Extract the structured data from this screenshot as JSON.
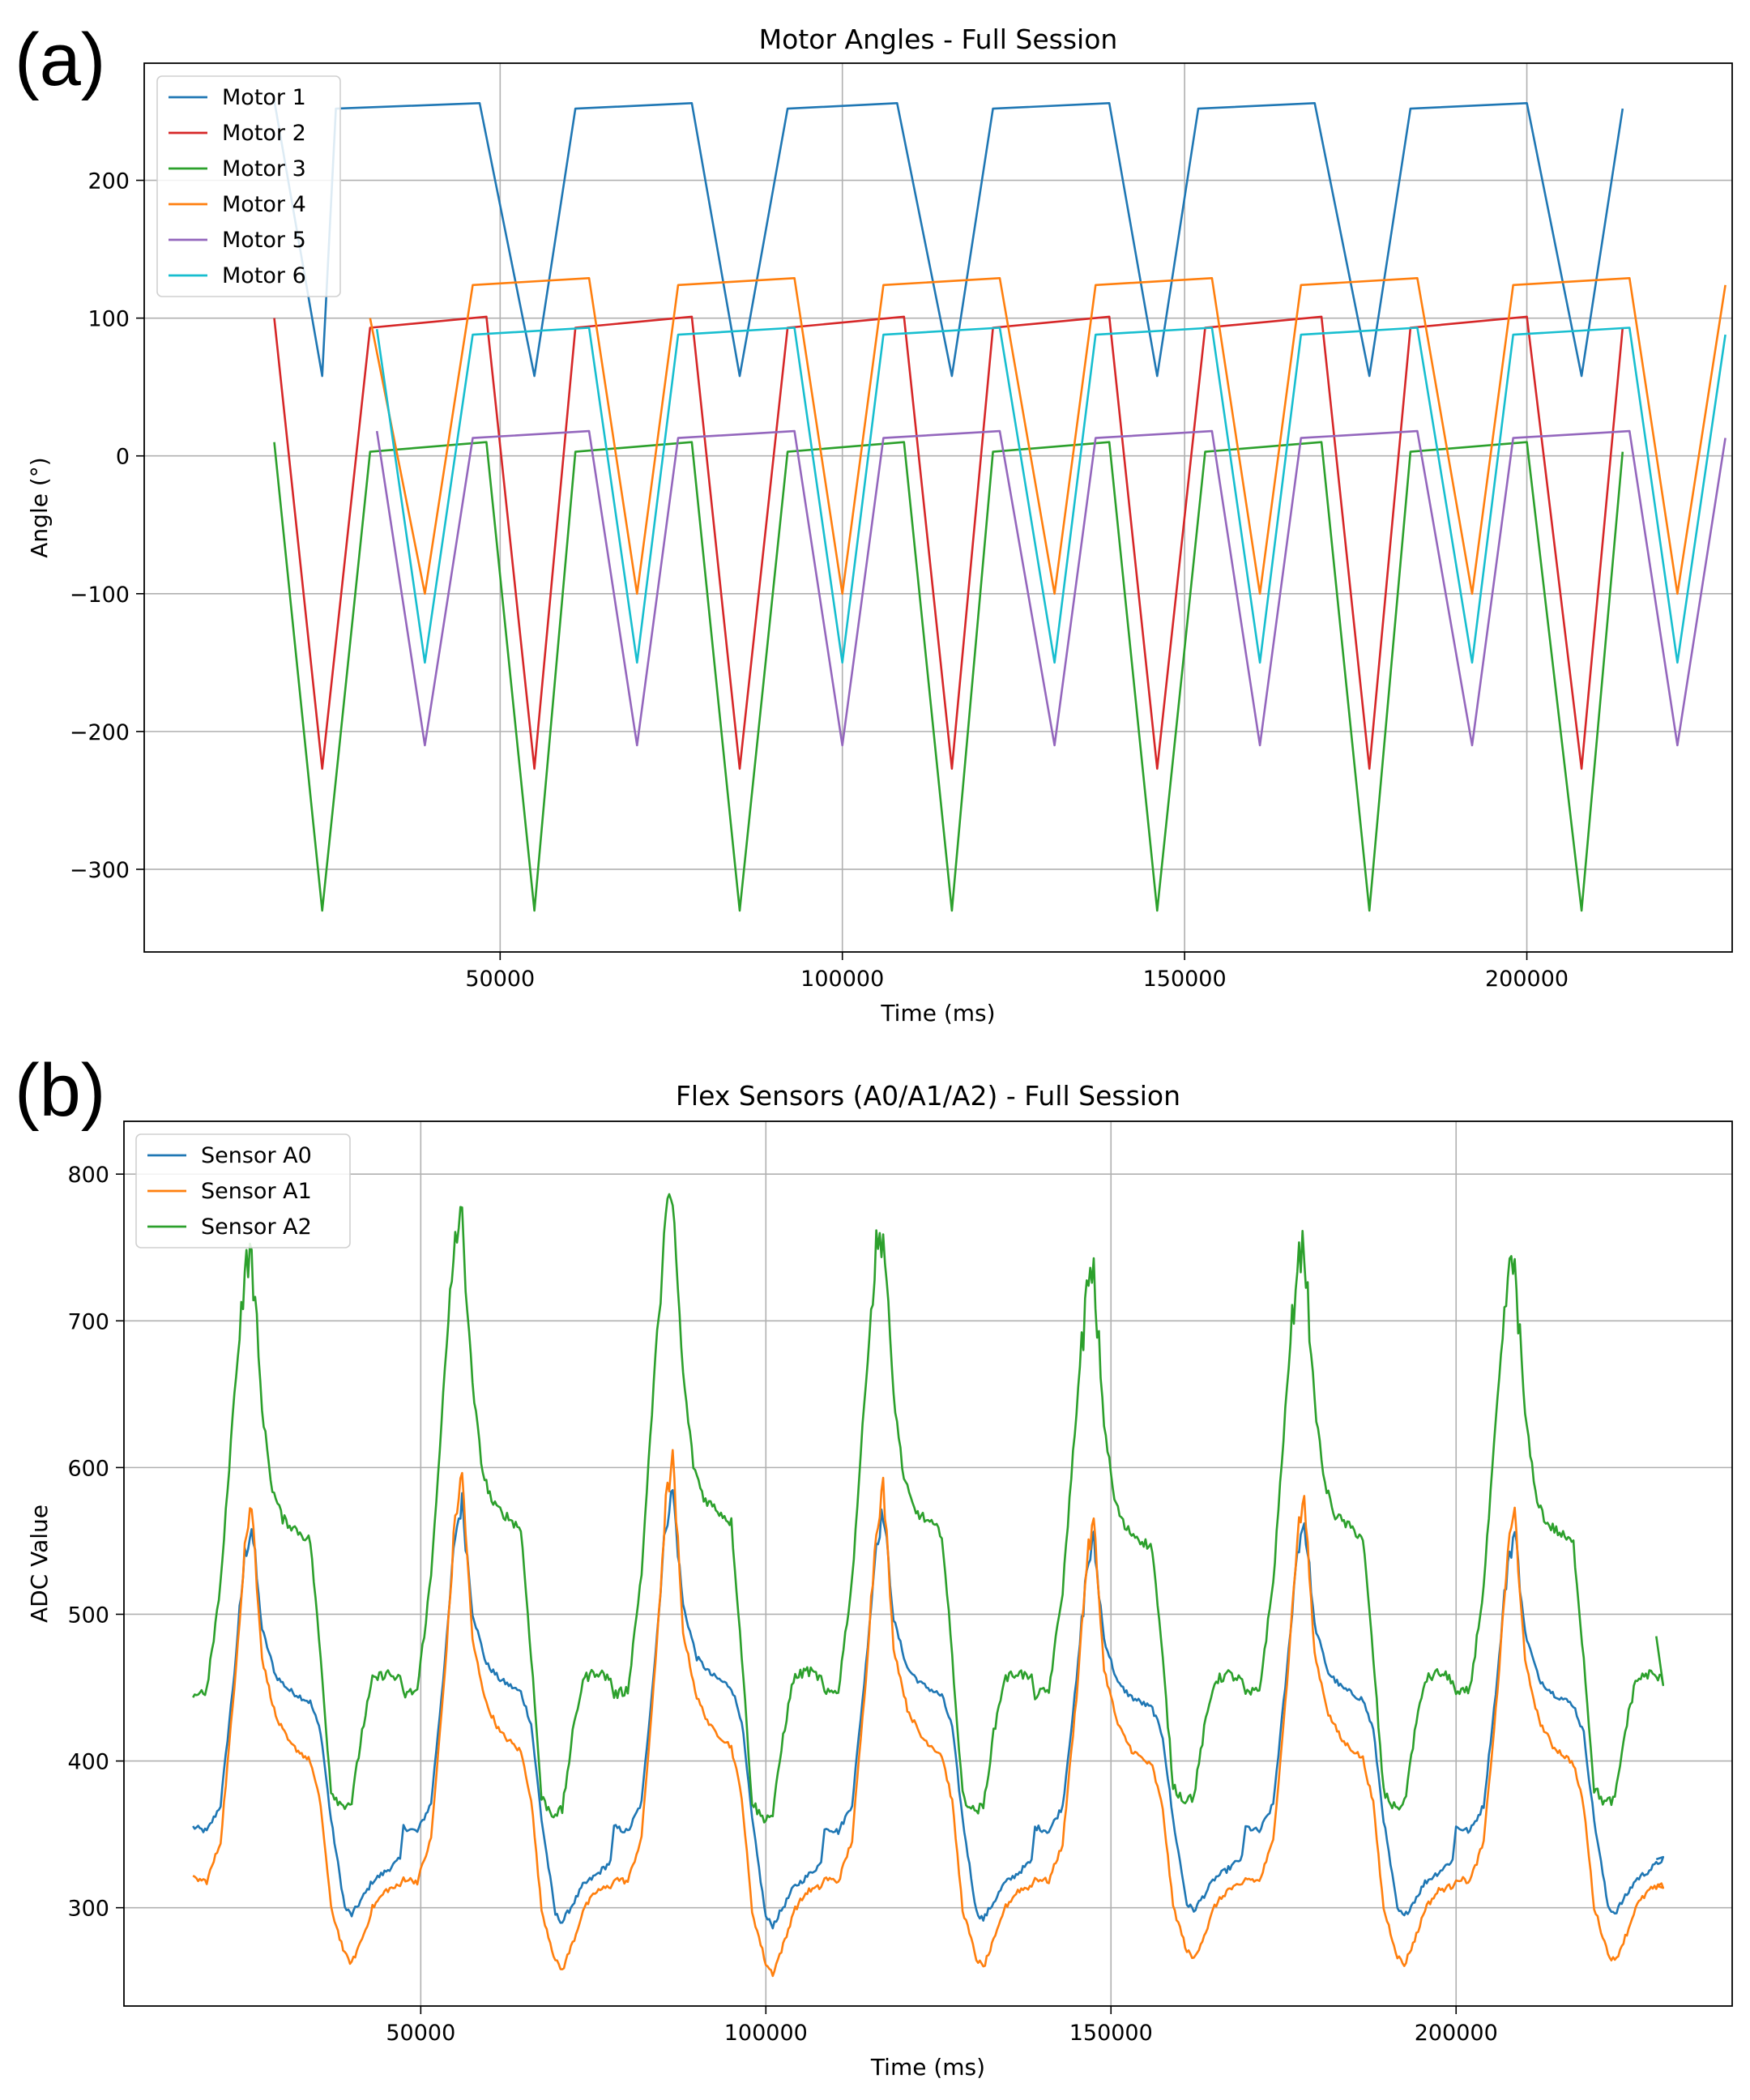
{
  "panel_labels": {
    "a": "(a)",
    "b": "(b)"
  },
  "chart_data": [
    {
      "type": "line",
      "title": "Motor Angles - Full Session",
      "xlabel": "Time (ms)",
      "ylabel": "Angle (°)",
      "xlim": [
        -2000,
        230000
      ],
      "ylim": [
        -360,
        285
      ],
      "xticks": [
        50000,
        100000,
        150000,
        200000
      ],
      "xtick_labels": [
        "50000",
        "100000",
        "150000",
        "200000"
      ],
      "yticks": [
        200,
        100,
        0,
        -100,
        -200,
        -300
      ],
      "ytick_labels": [
        "200",
        "100",
        "0",
        "−100",
        "−200",
        "−300"
      ],
      "grid": true,
      "legend_position": "upper-left",
      "series": [
        {
          "name": "Motor 1",
          "color": "#1f77b4",
          "points": [
            [
              17000,
              258
            ],
            [
              24000,
              58
            ],
            [
              26000,
              252
            ],
            [
              47000,
              256
            ],
            [
              55000,
              58
            ],
            [
              61000,
              252
            ],
            [
              78000,
              256
            ],
            [
              85000,
              58
            ],
            [
              92000,
              252
            ],
            [
              108000,
              256
            ],
            [
              116000,
              58
            ],
            [
              122000,
              252
            ],
            [
              139000,
              256
            ],
            [
              146000,
              58
            ],
            [
              152000,
              252
            ],
            [
              169000,
              256
            ],
            [
              177000,
              58
            ],
            [
              183000,
              252
            ],
            [
              200000,
              256
            ],
            [
              208000,
              58
            ],
            [
              214000,
              252
            ]
          ]
        },
        {
          "name": "Motor 2",
          "color": "#d62728",
          "points": [
            [
              17000,
              100
            ],
            [
              24000,
              -227
            ],
            [
              31000,
              93
            ],
            [
              48000,
              101
            ],
            [
              55000,
              -227
            ],
            [
              61000,
              93
            ],
            [
              78000,
              101
            ],
            [
              85000,
              -227
            ],
            [
              92000,
              93
            ],
            [
              109000,
              101
            ],
            [
              116000,
              -227
            ],
            [
              122000,
              93
            ],
            [
              139000,
              101
            ],
            [
              146000,
              -227
            ],
            [
              153000,
              93
            ],
            [
              170000,
              101
            ],
            [
              177000,
              -227
            ],
            [
              183000,
              93
            ],
            [
              200000,
              101
            ],
            [
              208000,
              -227
            ],
            [
              214000,
              93
            ]
          ]
        },
        {
          "name": "Motor 3",
          "color": "#2ca02c",
          "points": [
            [
              17000,
              10
            ],
            [
              24000,
              -330
            ],
            [
              31000,
              3
            ],
            [
              48000,
              10
            ],
            [
              55000,
              -330
            ],
            [
              61000,
              3
            ],
            [
              78000,
              10
            ],
            [
              85000,
              -330
            ],
            [
              92000,
              3
            ],
            [
              109000,
              10
            ],
            [
              116000,
              -330
            ],
            [
              122000,
              3
            ],
            [
              139000,
              10
            ],
            [
              146000,
              -330
            ],
            [
              153000,
              3
            ],
            [
              170000,
              10
            ],
            [
              177000,
              -330
            ],
            [
              183000,
              3
            ],
            [
              200000,
              10
            ],
            [
              208000,
              -330
            ],
            [
              214000,
              3
            ]
          ]
        },
        {
          "name": "Motor 4",
          "color": "#ff7f0e",
          "points": [
            [
              31000,
              100
            ],
            [
              39000,
              -100
            ],
            [
              46000,
              124
            ],
            [
              63000,
              129
            ],
            [
              70000,
              -100
            ],
            [
              76000,
              124
            ],
            [
              93000,
              129
            ],
            [
              100000,
              -100
            ],
            [
              106000,
              124
            ],
            [
              123000,
              129
            ],
            [
              131000,
              -100
            ],
            [
              137000,
              124
            ],
            [
              154000,
              129
            ],
            [
              161000,
              -100
            ],
            [
              167000,
              124
            ],
            [
              184000,
              129
            ],
            [
              192000,
              -100
            ],
            [
              198000,
              124
            ],
            [
              215000,
              129
            ],
            [
              222000,
              -100
            ],
            [
              229000,
              124
            ]
          ]
        },
        {
          "name": "Motor 5",
          "color": "#9467bd",
          "points": [
            [
              32000,
              18
            ],
            [
              39000,
              -210
            ],
            [
              46000,
              13
            ],
            [
              63000,
              18
            ],
            [
              70000,
              -210
            ],
            [
              76000,
              13
            ],
            [
              93000,
              18
            ],
            [
              100000,
              -210
            ],
            [
              106000,
              13
            ],
            [
              123000,
              18
            ],
            [
              131000,
              -210
            ],
            [
              137000,
              13
            ],
            [
              154000,
              18
            ],
            [
              161000,
              -210
            ],
            [
              167000,
              13
            ],
            [
              184000,
              18
            ],
            [
              192000,
              -210
            ],
            [
              198000,
              13
            ],
            [
              215000,
              18
            ],
            [
              222000,
              -210
            ],
            [
              229000,
              13
            ]
          ]
        },
        {
          "name": "Motor 6",
          "color": "#17becf",
          "points": [
            [
              32000,
              92
            ],
            [
              39000,
              -150
            ],
            [
              46000,
              88
            ],
            [
              63000,
              93
            ],
            [
              70000,
              -150
            ],
            [
              76000,
              88
            ],
            [
              93000,
              93
            ],
            [
              100000,
              -150
            ],
            [
              106000,
              88
            ],
            [
              123000,
              93
            ],
            [
              131000,
              -150
            ],
            [
              137000,
              88
            ],
            [
              154000,
              93
            ],
            [
              161000,
              -150
            ],
            [
              167000,
              88
            ],
            [
              184000,
              93
            ],
            [
              192000,
              -150
            ],
            [
              198000,
              88
            ],
            [
              215000,
              93
            ],
            [
              222000,
              -150
            ],
            [
              229000,
              88
            ]
          ]
        }
      ]
    },
    {
      "type": "line",
      "title": "Flex Sensors (A0/A1/A2) - Full Session",
      "xlabel": "Time (ms)",
      "ylabel": "ADC Value",
      "xlim": [
        7000,
        240000
      ],
      "ylim": [
        233,
        836
      ],
      "xticks": [
        50000,
        100000,
        150000,
        200000
      ],
      "xtick_labels": [
        "50000",
        "100000",
        "150000",
        "200000"
      ],
      "yticks": [
        800,
        700,
        600,
        500,
        400,
        300
      ],
      "ytick_labels": [
        "800",
        "700",
        "600",
        "500",
        "400",
        "300"
      ],
      "grid": true,
      "legend_position": "upper-left",
      "series": [
        {
          "name": "Sensor A0",
          "color": "#1f77b4",
          "cycle": [
            [
              0,
              355
            ],
            [
              2000,
              352
            ],
            [
              4000,
              370
            ],
            [
              6000,
              460
            ],
            [
              7500,
              540
            ],
            [
              8500,
              560
            ],
            [
              10000,
              490
            ],
            [
              12000,
              458
            ],
            [
              14000,
              448
            ],
            [
              17000,
              440
            ],
            [
              18500,
              420
            ],
            [
              20000,
              360
            ],
            [
              22000,
              300
            ],
            [
              23000,
              295
            ],
            [
              25000,
              310
            ],
            [
              26000,
              318
            ],
            [
              28000,
              325
            ],
            [
              30000,
              333
            ]
          ]
        },
        {
          "name": "Sensor A1",
          "color": "#ff7f0e",
          "cycle": [
            [
              0,
              320
            ],
            [
              2000,
              318
            ],
            [
              4000,
              345
            ],
            [
              6000,
              450
            ],
            [
              7500,
              548
            ],
            [
              8500,
              575
            ],
            [
              10000,
              470
            ],
            [
              12000,
              430
            ],
            [
              14000,
              412
            ],
            [
              17000,
              400
            ],
            [
              18500,
              370
            ],
            [
              20000,
              300
            ],
            [
              22000,
              268
            ],
            [
              23000,
              262
            ],
            [
              25000,
              285
            ],
            [
              26000,
              300
            ],
            [
              28000,
              312
            ],
            [
              30000,
              315
            ]
          ]
        },
        {
          "name": "Sensor A2",
          "color": "#2ca02c",
          "cycle": [
            [
              0,
              445
            ],
            [
              2000,
              448
            ],
            [
              4000,
              520
            ],
            [
              6000,
              650
            ],
            [
              7500,
              735
            ],
            [
              8500,
              745
            ],
            [
              10000,
              640
            ],
            [
              11500,
              585
            ],
            [
              13000,
              565
            ],
            [
              17000,
              550
            ],
            [
              18500,
              470
            ],
            [
              20000,
              380
            ],
            [
              21500,
              370
            ],
            [
              23000,
              372
            ],
            [
              24500,
              420
            ],
            [
              26000,
              455
            ],
            [
              28000,
              460
            ],
            [
              30000,
              455
            ]
          ]
        }
      ]
    }
  ]
}
